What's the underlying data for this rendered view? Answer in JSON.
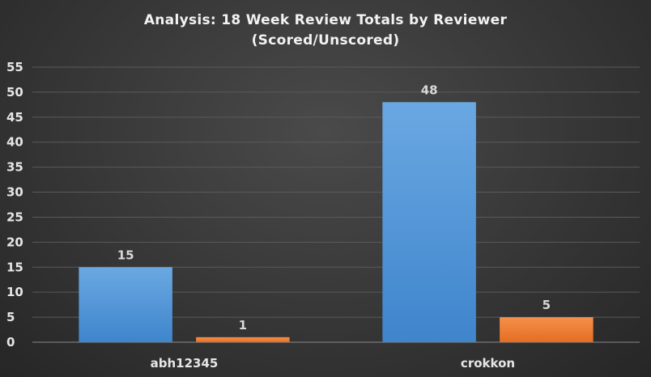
{
  "chart_data": {
    "type": "bar",
    "title": "Analysis:  18 Week Review Totals  by Reviewer",
    "subtitle": "(Scored/Unscored)",
    "categories": [
      "abh12345",
      "crokkon"
    ],
    "series": [
      {
        "name": "",
        "values": [
          15,
          48
        ],
        "color": "#5b9bd5"
      },
      {
        "name": "",
        "values": [
          1,
          5
        ],
        "color": "#ed7d31"
      }
    ],
    "yticks": [
      "0",
      "5",
      "10",
      "15",
      "20",
      "25",
      "30",
      "35",
      "40",
      "45",
      "50",
      "55"
    ],
    "ylim": [
      0,
      55
    ],
    "grid": true,
    "legend": "none",
    "data_labels": true,
    "background": "#3a3a3a"
  }
}
